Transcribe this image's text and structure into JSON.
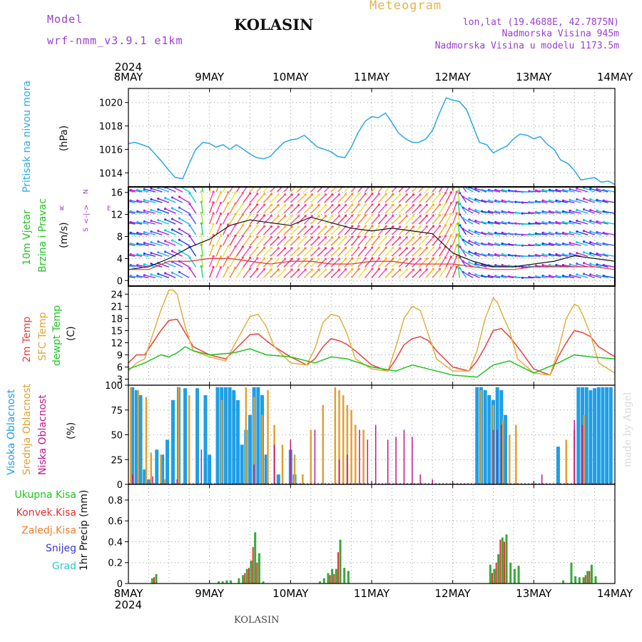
{
  "header": {
    "model_label": "Model",
    "model_name": "wrf-nmm_v3.9.1 e1km",
    "location": "KOLASIN",
    "title": "Meteogram",
    "lonlat": "lon,lat (19.4688E, 42.7875N)",
    "altitude": "Nadmorska Visina 945m",
    "model_altitude": "Nadmorska Visina u modelu 1173.5m"
  },
  "footer": {
    "location": "KOLASIN",
    "credit": "made by Angel"
  },
  "time_axis": {
    "year": "2024",
    "days": [
      "8MAY",
      "9MAY",
      "10MAY",
      "11MAY",
      "12MAY",
      "13MAY",
      "14MAY"
    ]
  },
  "colors": {
    "pressure": "#2aa8e6",
    "wind_speed": "#111111",
    "gust": "#e83030",
    "temp2m": "#e84040",
    "sfc_temp": "#e0b040",
    "dewpoint": "#22c422",
    "high_cloud": "#1e9ee6",
    "mid_cloud": "#e0a030",
    "low_cloud": "#c01890",
    "total_precip": "#3aa83a",
    "conv_precip": "#e83030",
    "frz_precip": "#f08030",
    "snow": "#3a3ad8",
    "hail": "#30c8c8"
  },
  "panels": {
    "pressure": {
      "labels": [
        "Pritisak na nivou mora"
      ],
      "unit": "(hPa)"
    },
    "wind": {
      "labels": [
        "10m Vjetar",
        "Brzina i Pravac"
      ],
      "unit": "(m/s)",
      "compass_n": "N",
      "compass_w": "W",
      "compass_e": "E",
      "compass_s": "S",
      "compass_sym": "<-|->"
    },
    "temp": {
      "labels": [
        "2m Temp",
        "SFC Temp",
        "dewpt Temp"
      ],
      "unit": "(C)"
    },
    "cloud": {
      "labels": [
        "Visoka Oblacnost",
        "Srednja Oblacnost",
        "Niska Oblacnost"
      ],
      "unit": "(%)"
    },
    "precip": {
      "labels": [
        "Ukupna Kisa",
        "Konvek.Kisa",
        "Zaledj.Kisa",
        "Snijeg",
        "Grad"
      ],
      "unit": "1hr Precip (mm)"
    }
  },
  "chart_data": [
    {
      "type": "line",
      "panel": "pressure",
      "x_unit": "days since 8MAY 00UTC",
      "ylim": [
        1012.8,
        1021.2
      ],
      "yticks": [
        1014,
        1016,
        1018,
        1020
      ],
      "grid": true,
      "series": [
        {
          "name": "Pritisak na nivou mora",
          "x": [
            0,
            0.08,
            0.17,
            0.25,
            0.33,
            0.42,
            0.5,
            0.58,
            0.67,
            0.75,
            0.83,
            0.92,
            1.0,
            1.08,
            1.17,
            1.25,
            1.33,
            1.42,
            1.5,
            1.58,
            1.67,
            1.75,
            1.83,
            1.92,
            2.0,
            2.08,
            2.17,
            2.25,
            2.33,
            2.42,
            2.5,
            2.58,
            2.67,
            2.75,
            2.83,
            2.92,
            3.0,
            3.08,
            3.17,
            3.25,
            3.33,
            3.42,
            3.5,
            3.58,
            3.67,
            3.75,
            3.83,
            3.92,
            4.0,
            4.08,
            4.17,
            4.25,
            4.33,
            4.42,
            4.5,
            4.58,
            4.67,
            4.75,
            4.83,
            4.92,
            5.0,
            5.08,
            5.17,
            5.25,
            5.33,
            5.42,
            5.5,
            5.58,
            5.67,
            5.75,
            5.83,
            5.92,
            6.0
          ],
          "values": [
            1016.5,
            1016.6,
            1016.4,
            1016.2,
            1015.6,
            1014.9,
            1014.2,
            1013.6,
            1013.5,
            1014.8,
            1016.0,
            1016.6,
            1016.5,
            1016.2,
            1016.4,
            1016.0,
            1016.4,
            1016.0,
            1015.6,
            1015.3,
            1015.2,
            1015.4,
            1016.0,
            1016.6,
            1016.8,
            1016.9,
            1017.2,
            1016.7,
            1016.2,
            1016.0,
            1015.8,
            1015.4,
            1015.3,
            1016.2,
            1017.4,
            1018.4,
            1018.8,
            1018.7,
            1019.1,
            1018.3,
            1017.4,
            1016.9,
            1016.6,
            1016.6,
            1016.9,
            1017.6,
            1019.0,
            1020.4,
            1020.2,
            1020.1,
            1019.4,
            1018.0,
            1016.6,
            1016.4,
            1015.7,
            1016.0,
            1016.3,
            1016.9,
            1017.3,
            1017.2,
            1016.9,
            1017.1,
            1016.4,
            1016.0,
            1015.1,
            1014.8,
            1014.2,
            1013.4,
            1013.5,
            1013.6,
            1013.2,
            1013.3,
            1013.0
          ]
        }
      ]
    },
    {
      "type": "line",
      "panel": "wind",
      "x_unit": "days since 8MAY 00UTC",
      "ylim": [
        -1,
        17
      ],
      "yticks": [
        0,
        4,
        8,
        12,
        16
      ],
      "grid": true,
      "series": [
        {
          "name": "wind speed",
          "x": [
            0,
            0.25,
            0.5,
            0.75,
            1.0,
            1.25,
            1.5,
            1.75,
            2.0,
            2.25,
            2.5,
            2.75,
            3.0,
            3.25,
            3.5,
            3.75,
            4.0,
            4.25,
            4.5,
            4.75,
            5.0,
            5.25,
            5.5,
            5.75,
            6.0
          ],
          "values": [
            2.0,
            2.5,
            4.0,
            6.0,
            7.5,
            10.0,
            11.0,
            10.5,
            10.0,
            11.5,
            10.5,
            9.5,
            9.0,
            9.5,
            9.0,
            8.5,
            5.0,
            3.5,
            2.5,
            2.5,
            3.0,
            3.5,
            4.5,
            4.0,
            3.5
          ]
        },
        {
          "name": "gust",
          "x": [
            0,
            0.25,
            0.5,
            0.75,
            1.0,
            1.25,
            1.5,
            1.75,
            2.0,
            2.25,
            2.5,
            2.75,
            3.0,
            3.25,
            3.5,
            3.75,
            4.0,
            4.25,
            4.5,
            4.75,
            5.0,
            5.25,
            5.5,
            5.75,
            6.0
          ],
          "values": [
            2.0,
            2.0,
            3.5,
            3.5,
            4.0,
            4.0,
            3.5,
            3.0,
            3.5,
            3.5,
            3.0,
            3.0,
            3.5,
            3.5,
            3.0,
            3.0,
            3.0,
            2.5,
            2.0,
            2.0,
            2.5,
            2.5,
            2.5,
            2.5,
            2.0
          ]
        }
      ],
      "wind_direction_deg": [
        100,
        100,
        110,
        120,
        200,
        210,
        220,
        225,
        225,
        225,
        225,
        220,
        220,
        225,
        225,
        220,
        200,
        120,
        100,
        100,
        90,
        100,
        100,
        110,
        100
      ]
    },
    {
      "type": "line",
      "panel": "temp",
      "x_unit": "days since 8MAY 00UTC",
      "ylim": [
        1.5,
        26
      ],
      "yticks": [
        3,
        6,
        9,
        12,
        15,
        18,
        21,
        24
      ],
      "grid": true,
      "series": [
        {
          "name": "2m Temp",
          "x": [
            0,
            0.1,
            0.2,
            0.3,
            0.4,
            0.5,
            0.6,
            0.7,
            0.8,
            1.0,
            1.2,
            1.35,
            1.5,
            1.6,
            1.7,
            1.8,
            2.0,
            2.2,
            2.3,
            2.4,
            2.5,
            2.6,
            2.7,
            2.8,
            3.0,
            3.2,
            3.3,
            3.4,
            3.5,
            3.6,
            3.7,
            3.8,
            4.0,
            4.2,
            4.3,
            4.4,
            4.5,
            4.6,
            4.7,
            4.8,
            5.0,
            5.2,
            5.3,
            5.4,
            5.5,
            5.6,
            5.7,
            5.8,
            6.0
          ],
          "values": [
            7.0,
            9.0,
            9.0,
            12.0,
            15.0,
            17.5,
            17.8,
            14.5,
            11.0,
            9.0,
            8.0,
            11.0,
            14.0,
            14.2,
            12.5,
            11.0,
            8.5,
            6.5,
            8.0,
            11.0,
            13.0,
            12.5,
            11.5,
            10.0,
            6.5,
            5.0,
            8.0,
            11.5,
            13.0,
            13.5,
            12.5,
            10.0,
            6.0,
            5.0,
            7.5,
            11.0,
            15.0,
            15.5,
            13.5,
            11.0,
            5.5,
            4.0,
            8.5,
            12.0,
            15.0,
            14.5,
            13.5,
            11.0,
            8.5
          ]
        },
        {
          "name": "SFC Temp",
          "x": [
            0,
            0.1,
            0.2,
            0.3,
            0.4,
            0.5,
            0.55,
            0.6,
            0.7,
            0.8,
            1.0,
            1.2,
            1.35,
            1.5,
            1.6,
            1.7,
            1.8,
            2.0,
            2.2,
            2.3,
            2.4,
            2.5,
            2.6,
            2.7,
            2.8,
            3.0,
            3.2,
            3.3,
            3.4,
            3.5,
            3.6,
            3.7,
            3.8,
            4.0,
            4.2,
            4.3,
            4.4,
            4.5,
            4.55,
            4.6,
            4.7,
            4.8,
            5.0,
            5.2,
            5.3,
            5.4,
            5.5,
            5.55,
            5.6,
            5.7,
            5.8,
            6.0
          ],
          "values": [
            5.0,
            7.0,
            8.0,
            14.0,
            20.0,
            25.0,
            25.0,
            24.0,
            16.0,
            10.0,
            8.5,
            7.5,
            13.0,
            18.5,
            19.0,
            16.0,
            11.0,
            7.0,
            6.5,
            10.5,
            17.0,
            19.0,
            18.5,
            14.0,
            8.0,
            5.5,
            5.0,
            11.0,
            18.0,
            21.0,
            20.0,
            14.0,
            8.0,
            5.0,
            5.0,
            10.0,
            18.0,
            23.0,
            22.0,
            19.5,
            15.0,
            8.0,
            4.5,
            4.0,
            10.0,
            18.0,
            21.5,
            21.0,
            19.0,
            14.0,
            7.0,
            4.5
          ]
        },
        {
          "name": "dewpt Temp",
          "x": [
            0,
            0.2,
            0.4,
            0.5,
            0.6,
            0.7,
            0.8,
            1.0,
            1.3,
            1.5,
            1.7,
            2.0,
            2.3,
            2.5,
            2.7,
            3.0,
            3.3,
            3.5,
            3.7,
            4.0,
            4.3,
            4.5,
            4.7,
            5.0,
            5.3,
            5.5,
            5.7,
            6.0
          ],
          "values": [
            5.5,
            7.0,
            9.0,
            8.5,
            9.5,
            11.0,
            10.0,
            9.0,
            9.5,
            10.5,
            9.0,
            8.5,
            7.0,
            8.5,
            8.0,
            6.0,
            5.0,
            6.5,
            5.5,
            4.0,
            3.5,
            6.5,
            7.5,
            4.5,
            7.0,
            9.0,
            8.5,
            8.0
          ]
        }
      ]
    },
    {
      "type": "bar",
      "panel": "cloud",
      "x_unit": "days since 8MAY 00UTC",
      "ylim": [
        0,
        100
      ],
      "yticks": [
        0,
        25,
        50,
        75,
        100
      ],
      "grid": true,
      "series": [
        {
          "name": "Visoka Oblacnost",
          "x": [
            0.05,
            0.1,
            0.15,
            0.2,
            0.25,
            0.35,
            0.42,
            0.48,
            0.55,
            0.62,
            0.7,
            0.85,
            0.95,
            1.0,
            1.1,
            1.15,
            1.2,
            1.25,
            1.3,
            1.35,
            1.4,
            1.45,
            1.5,
            1.55,
            1.6,
            1.65,
            1.7,
            1.85,
            2.0,
            2.05,
            4.3,
            4.35,
            4.4,
            4.45,
            4.5,
            4.55,
            4.6,
            4.65,
            5.3,
            5.55,
            5.6,
            5.65,
            5.7,
            5.75,
            5.8,
            5.85,
            5.9,
            5.95
          ],
          "values": [
            98,
            95,
            90,
            15,
            5,
            35,
            30,
            45,
            85,
            98,
            97,
            97,
            90,
            30,
            98,
            98,
            98,
            98,
            95,
            85,
            40,
            55,
            70,
            98,
            98,
            90,
            30,
            10,
            35,
            10,
            98,
            98,
            95,
            90,
            85,
            98,
            95,
            70,
            38,
            98,
            98,
            98,
            95,
            97,
            98,
            98,
            98,
            98
          ]
        },
        {
          "name": "Srednja Oblacnost",
          "x": [
            0.03,
            0.12,
            0.22,
            0.28,
            0.4,
            0.45,
            0.62,
            0.75,
            1.15,
            1.45,
            1.55,
            1.65,
            1.72,
            1.8,
            1.9,
            2.05,
            2.15,
            2.25,
            2.4,
            2.55,
            2.6,
            2.65,
            2.7,
            2.75,
            2.8,
            2.9,
            4.35,
            4.5,
            4.62,
            4.7,
            4.78,
            5.4,
            5.5,
            5.62
          ],
          "values": [
            98,
            95,
            88,
            32,
            30,
            5,
            98,
            90,
            85,
            98,
            88,
            70,
            95,
            60,
            40,
            30,
            10,
            55,
            80,
            98,
            95,
            90,
            80,
            75,
            60,
            55,
            95,
            80,
            65,
            50,
            60,
            45,
            55,
            70
          ]
        },
        {
          "name": "Niska Oblacnost",
          "x": [
            0.05,
            0.3,
            0.6,
            0.9,
            1.55,
            1.8,
            2.0,
            2.3,
            2.6,
            2.7,
            2.85,
            2.95,
            3.05,
            3.2,
            3.3,
            3.4,
            3.5,
            3.6,
            3.75,
            4.5,
            4.55,
            4.6,
            5.1,
            5.5,
            5.6
          ],
          "values": [
            10,
            8,
            5,
            35,
            20,
            40,
            45,
            55,
            25,
            30,
            55,
            45,
            60,
            45,
            48,
            55,
            48,
            10,
            5,
            55,
            55,
            60,
            10,
            65,
            60
          ]
        }
      ]
    },
    {
      "type": "bar",
      "panel": "precip",
      "x_unit": "days since 8MAY 00UTC",
      "ylim": [
        0,
        0.95
      ],
      "yticks": [
        0,
        0.2,
        0.4,
        0.6,
        0.8
      ],
      "grid": true,
      "series": [
        {
          "name": "Ukupna Kisa",
          "x": [
            0.28,
            0.33,
            1.1,
            1.15,
            1.2,
            1.25,
            1.35,
            1.4,
            1.45,
            1.5,
            1.55,
            1.6,
            1.65,
            2.35,
            2.4,
            2.45,
            2.5,
            2.55,
            2.6,
            2.65,
            2.7,
            4.45,
            4.5,
            4.55,
            4.6,
            4.65,
            4.7,
            4.75,
            4.8,
            5.35,
            5.45,
            5.5,
            5.55,
            5.6,
            5.65,
            5.7,
            5.75
          ],
          "values": [
            0.05,
            0.09,
            0.02,
            0.02,
            0.03,
            0.03,
            0.05,
            0.08,
            0.14,
            0.22,
            0.49,
            0.29,
            0.02,
            0.02,
            0.05,
            0.1,
            0.14,
            0.14,
            0.42,
            0.15,
            0.12,
            0.18,
            0.14,
            0.28,
            0.44,
            0.47,
            0.2,
            0.14,
            0.17,
            0.03,
            0.2,
            0.07,
            0.06,
            0.06,
            0.12,
            0.18,
            0.07
          ]
        },
        {
          "name": "Konvek.Kisa",
          "x": [
            0.33,
            1.45,
            1.5,
            1.55,
            1.6,
            2.5,
            2.55,
            2.6,
            4.5,
            4.55,
            4.6,
            4.65,
            5.65,
            5.7
          ],
          "values": [
            0.06,
            0.1,
            0.15,
            0.35,
            0.2,
            0.08,
            0.09,
            0.3,
            0.1,
            0.2,
            0.42,
            0.4,
            0.08,
            0.12
          ]
        }
      ]
    }
  ]
}
